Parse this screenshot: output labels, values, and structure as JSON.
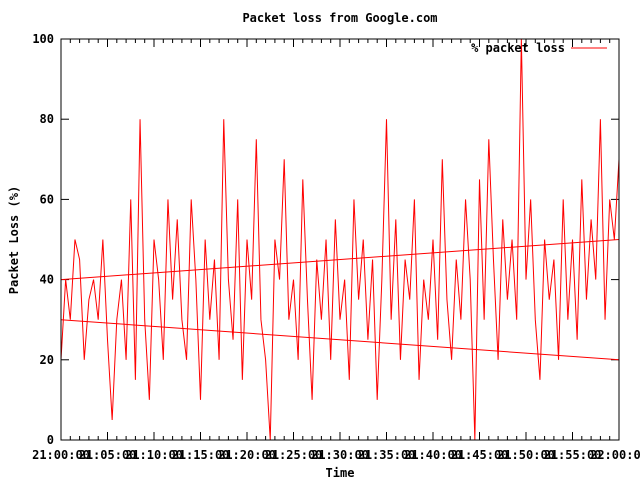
{
  "chart_data": {
    "type": "line",
    "title": "Packet loss from Google.com",
    "xlabel": "Time",
    "ylabel": "Packet Loss (%)",
    "ylim": [
      0,
      100
    ],
    "yticks": [
      0,
      20,
      40,
      60,
      80,
      100
    ],
    "xlim": [
      "21:00:00",
      "22:00:00"
    ],
    "xticks": [
      "21:00:00",
      "21:05:00",
      "21:10:00",
      "21:15:00",
      "21:20:00",
      "21:25:00",
      "21:30:00",
      "21:35:00",
      "21:40:00",
      "21:45:00",
      "21:50:00",
      "21:55:00",
      "22:00:00"
    ],
    "legend": {
      "placement": "top-right",
      "entries": [
        "% packet loss"
      ]
    },
    "grid": false,
    "colors": {
      "series": "#ff0000",
      "axes": "#000000",
      "background": "#ffffff"
    },
    "series": [
      {
        "name": "% packet loss",
        "x": [
          "21:00:00",
          "21:00:30",
          "21:01:00",
          "21:01:30",
          "21:02:00",
          "21:02:30",
          "21:03:00",
          "21:03:30",
          "21:04:00",
          "21:04:30",
          "21:05:00",
          "21:05:30",
          "21:06:00",
          "21:06:30",
          "21:07:00",
          "21:07:30",
          "21:08:00",
          "21:08:30",
          "21:09:00",
          "21:09:30",
          "21:10:00",
          "21:10:30",
          "21:11:00",
          "21:11:30",
          "21:12:00",
          "21:12:30",
          "21:13:00",
          "21:13:30",
          "21:14:00",
          "21:14:30",
          "21:15:00",
          "21:15:30",
          "21:16:00",
          "21:16:30",
          "21:17:00",
          "21:17:30",
          "21:18:00",
          "21:18:30",
          "21:19:00",
          "21:19:30",
          "21:20:00",
          "21:20:30",
          "21:21:00",
          "21:21:30",
          "21:22:00",
          "21:22:30",
          "21:23:00",
          "21:23:30",
          "21:24:00",
          "21:24:30",
          "21:25:00",
          "21:25:30",
          "21:26:00",
          "21:26:30",
          "21:27:00",
          "21:27:30",
          "21:28:00",
          "21:28:30",
          "21:29:00",
          "21:29:30",
          "21:30:00",
          "21:30:30",
          "21:31:00",
          "21:31:30",
          "21:32:00",
          "21:32:30",
          "21:33:00",
          "21:33:30",
          "21:34:00",
          "21:34:30",
          "21:35:00",
          "21:35:30",
          "21:36:00",
          "21:36:30",
          "21:37:00",
          "21:37:30",
          "21:38:00",
          "21:38:30",
          "21:39:00",
          "21:39:30",
          "21:40:00",
          "21:40:30",
          "21:41:00",
          "21:41:30",
          "21:42:00",
          "21:42:30",
          "21:43:00",
          "21:43:30",
          "21:44:00",
          "21:44:30",
          "21:45:00",
          "21:45:30",
          "21:46:00",
          "21:46:30",
          "21:47:00",
          "21:47:30",
          "21:48:00",
          "21:48:30",
          "21:49:00",
          "21:49:30",
          "21:50:00",
          "21:50:30",
          "21:51:00",
          "21:51:30",
          "21:52:00",
          "21:52:30",
          "21:53:00",
          "21:53:30",
          "21:54:00",
          "21:54:30",
          "21:55:00",
          "21:55:30",
          "21:56:00",
          "21:56:30",
          "21:57:00",
          "21:57:30",
          "21:58:00",
          "21:58:30",
          "21:59:00",
          "21:59:30",
          "22:00:00"
        ],
        "values": [
          20,
          40,
          30,
          50,
          45,
          20,
          35,
          40,
          30,
          50,
          25,
          5,
          30,
          40,
          20,
          60,
          15,
          80,
          30,
          10,
          50,
          40,
          20,
          60,
          35,
          55,
          30,
          20,
          60,
          40,
          10,
          50,
          30,
          45,
          20,
          80,
          40,
          25,
          60,
          15,
          50,
          35,
          75,
          30,
          20,
          0,
          50,
          40,
          70,
          30,
          40,
          20,
          65,
          35,
          10,
          45,
          30,
          50,
          20,
          55,
          30,
          40,
          15,
          60,
          35,
          50,
          25,
          45,
          10,
          40,
          80,
          30,
          55,
          20,
          45,
          35,
          60,
          15,
          40,
          30,
          50,
          25,
          70,
          35,
          20,
          45,
          30,
          60,
          40,
          0,
          65,
          30,
          75,
          45,
          20,
          55,
          35,
          50,
          30,
          100,
          40,
          60,
          30,
          15,
          50,
          35,
          45,
          20,
          60,
          30,
          50,
          25,
          65,
          35,
          55,
          40,
          80,
          30,
          60,
          50,
          70
        ]
      }
    ],
    "trend_lines": [
      {
        "x": [
          "21:00:00",
          "22:00:00"
        ],
        "values": [
          40,
          50
        ]
      },
      {
        "x": [
          "21:00:00",
          "22:00:00"
        ],
        "values": [
          30,
          20
        ]
      }
    ]
  }
}
